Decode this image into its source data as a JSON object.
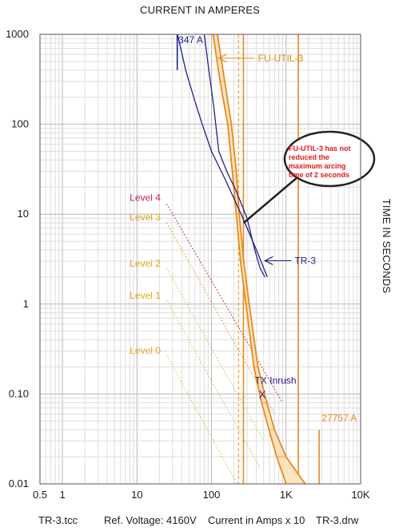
{
  "chart_data": {
    "type": "line",
    "title": "CURRENT IN AMPERES",
    "ylabel": "TIME IN SECONDS",
    "x_scale": "log",
    "y_scale": "log",
    "xlim": [
      0.5,
      10000
    ],
    "ylim": [
      0.01,
      1000
    ],
    "x_tick_labels": [
      {
        "value": 0.5,
        "label": "0.5"
      },
      {
        "value": 1,
        "label": "1"
      },
      {
        "value": 10,
        "label": "10"
      },
      {
        "value": 100,
        "label": "100"
      },
      {
        "value": 1000,
        "label": "1K"
      },
      {
        "value": 10000,
        "label": "10K"
      }
    ],
    "y_tick_labels": [
      {
        "value": 1000,
        "label": "1000"
      },
      {
        "value": 100,
        "label": "100"
      },
      {
        "value": 10,
        "label": "10"
      },
      {
        "value": 1,
        "label": "1"
      },
      {
        "value": 0.1,
        "label": "0.10"
      },
      {
        "value": 0.01,
        "label": "0.01"
      }
    ],
    "grid": true,
    "footer": {
      "file": "TR-3.tcc",
      "voltage": "Ref. Voltage: 4160V",
      "scale": "Current in Amps x 10",
      "drawing": "TR-3.drw"
    },
    "series": [
      {
        "name": "TR-3",
        "color": "#1f1f8f",
        "style": "solid",
        "lines": [
          [
            [
              80,
              1000
            ],
            [
              92,
              400
            ],
            [
              108,
              150
            ],
            [
              125,
              50
            ],
            [
              160,
              30
            ],
            [
              215,
              18
            ],
            [
              300,
              9
            ],
            [
              380,
              4
            ],
            [
              450,
              2.5
            ],
            [
              520,
              2
            ]
          ],
          [
            [
              35,
              1000
            ],
            [
              45,
              400
            ],
            [
              60,
              180
            ],
            [
              75,
              100
            ],
            [
              100,
              50
            ],
            [
              150,
              25
            ],
            [
              250,
              10
            ],
            [
              400,
              4
            ],
            [
              560,
              2
            ]
          ]
        ]
      },
      {
        "name": "FU-UTIL-3",
        "color": "#e8891b",
        "style": "band",
        "upper": [
          [
            120,
            1000
          ],
          [
            150,
            300
          ],
          [
            185,
            100
          ],
          [
            215,
            30
          ],
          [
            235,
            10
          ],
          [
            270,
            3
          ],
          [
            320,
            1
          ],
          [
            420,
            0.2
          ],
          [
            550,
            0.08
          ],
          [
            700,
            0.04
          ],
          [
            1000,
            0.02
          ],
          [
            1800,
            0.01
          ]
        ],
        "lower": [
          [
            105,
            1000
          ],
          [
            130,
            300
          ],
          [
            165,
            100
          ],
          [
            190,
            30
          ],
          [
            215,
            10
          ],
          [
            245,
            3
          ],
          [
            290,
            1
          ],
          [
            370,
            0.2
          ],
          [
            470,
            0.08
          ],
          [
            590,
            0.04
          ],
          [
            750,
            0.02
          ],
          [
            1000,
            0.01
          ]
        ]
      },
      {
        "name": "Level 4",
        "color": "#c0264a",
        "style": "dotted",
        "points": [
          [
            25,
            13
          ],
          [
            900,
            0.08
          ]
        ]
      },
      {
        "name": "Level 3",
        "color": "#e3a21a",
        "style": "dotted",
        "points": [
          [
            25,
            8
          ],
          [
            700,
            0.06
          ]
        ]
      },
      {
        "name": "Level 2",
        "color": "#c9c94a",
        "style": "dotted",
        "points": [
          [
            25,
            2.5
          ],
          [
            500,
            0.03
          ]
        ]
      },
      {
        "name": "Level 1",
        "color": "#c9c94a",
        "style": "dotted",
        "points": [
          [
            25,
            1.1
          ],
          [
            450,
            0.015
          ]
        ]
      },
      {
        "name": "Level 0",
        "color": "#c9c94a",
        "style": "dotted",
        "points": [
          [
            25,
            0.27
          ],
          [
            220,
            0.01
          ]
        ]
      }
    ],
    "vertical_markers": [
      {
        "value": 230,
        "color": "#e8891b",
        "style": "dashed"
      },
      {
        "value": 268,
        "color": "#e8891b",
        "style": "solid"
      },
      {
        "value": 1460,
        "color": "#e8891b",
        "style": "solid"
      }
    ],
    "limit_marks": [
      {
        "x": 34.7,
        "y_range": [
          400,
          1000
        ],
        "color": "#1f1f8f"
      },
      {
        "x": 2775.7,
        "y_range": [
          0.01,
          0.04
        ],
        "color": "#e8891b"
      }
    ],
    "markers": [
      {
        "label": "X",
        "x": 480,
        "y": 0.1,
        "color": "#1f1f8f"
      }
    ],
    "annotations": [
      {
        "text": "347 A",
        "x": 36,
        "y": 800,
        "color": "#1f1f8f"
      },
      {
        "text": "FU-UTIL-3",
        "x": 420,
        "y": 500,
        "color": "#e8891b",
        "arrow_to": [
          125,
          500
        ]
      },
      {
        "text": "TR-3",
        "x": 1300,
        "y": 2.8,
        "color": "#1f1f8f",
        "arrow_to": [
          520,
          2.8
        ]
      },
      {
        "text": "TX Inrush",
        "x": 380,
        "y": 0.13,
        "color": "#1f1f8f"
      },
      {
        "text": "27757 A",
        "x": 3000,
        "y": 0.05,
        "color": "#e8891b"
      },
      {
        "text": "Level 4",
        "x": 8,
        "y": 14,
        "color": "#c0264a"
      },
      {
        "text": "Level 3",
        "x": 8,
        "y": 8.5,
        "color": "#e3a21a"
      },
      {
        "text": "Level 2",
        "x": 8,
        "y": 2.6,
        "color": "#e3a21a"
      },
      {
        "text": "Level 1",
        "x": 8,
        "y": 1.15,
        "color": "#e3a21a"
      },
      {
        "text": "Level 0",
        "x": 8,
        "y": 0.28,
        "color": "#e3a21a"
      }
    ],
    "callout": {
      "lines": [
        "FU-UTIL-3 has not",
        "reduced the",
        "maximum arcing",
        "time of 2 seconds"
      ],
      "color": "#e01a1a",
      "points_to": [
        270,
        8
      ]
    }
  }
}
